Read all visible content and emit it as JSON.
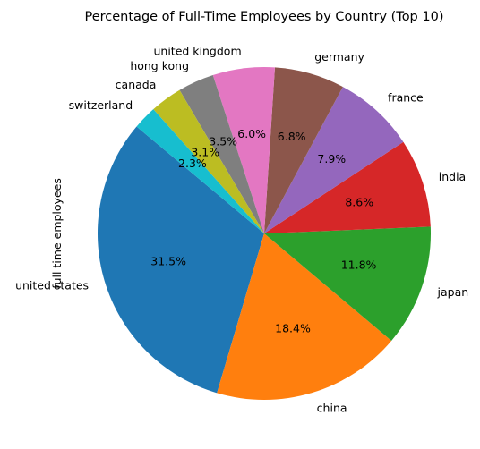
{
  "chart_data": {
    "type": "pie",
    "title": "Percentage of Full-Time Employees by Country (Top 10)",
    "ylabel": "full time employees",
    "slices": [
      {
        "label": "united states",
        "value": 31.5,
        "pct_label": "31.5%",
        "color": "#1f77b4"
      },
      {
        "label": "china",
        "value": 18.4,
        "pct_label": "18.4%",
        "color": "#ff7f0e"
      },
      {
        "label": "japan",
        "value": 11.8,
        "pct_label": "11.8%",
        "color": "#2ca02c"
      },
      {
        "label": "india",
        "value": 8.6,
        "pct_label": "8.6%",
        "color": "#d62728"
      },
      {
        "label": "france",
        "value": 7.9,
        "pct_label": "7.9%",
        "color": "#9467bd"
      },
      {
        "label": "germany",
        "value": 6.8,
        "pct_label": "6.8%",
        "color": "#8c564b"
      },
      {
        "label": "united kingdom",
        "value": 6.0,
        "pct_label": "6.0%",
        "color": "#e377c2"
      },
      {
        "label": "hong kong",
        "value": 3.5,
        "pct_label": "3.5%",
        "color": "#7f7f7f"
      },
      {
        "label": "canada",
        "value": 3.1,
        "pct_label": "3.1%",
        "color": "#bcbd22"
      },
      {
        "label": "switzerland",
        "value": 2.3,
        "pct_label": "2.3%",
        "color": "#17becf"
      }
    ]
  }
}
